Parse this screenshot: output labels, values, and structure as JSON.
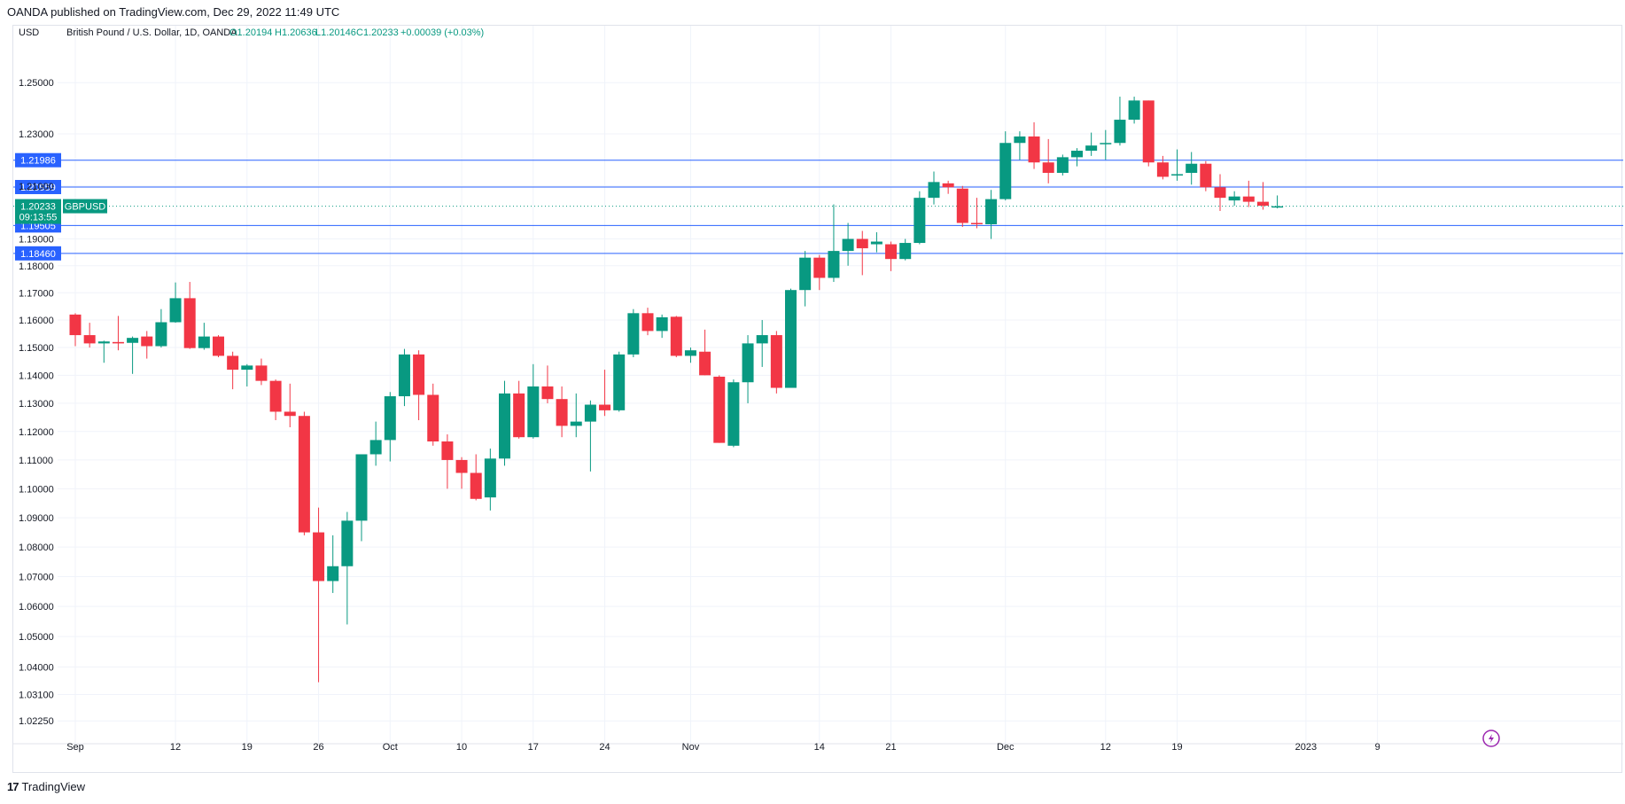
{
  "header": {
    "published_text": "OANDA published on TradingView.com, Dec 29, 2022 11:49 UTC"
  },
  "footer": {
    "brand_mark": "17",
    "brand_name": "TradingView"
  },
  "chart_data": {
    "type": "candlestick",
    "currency": "USD",
    "legend": {
      "symbol_text": "British Pound / U.S. Dollar, 1D, OANDA",
      "open": "O1.20194",
      "high": "H1.20636",
      "low": "L1.20146",
      "close": "C1.20233",
      "change": "+0.00039 (+0.03%)"
    },
    "price_axis": {
      "scale": "log",
      "range": [
        1.018,
        1.262
      ],
      "ticks": [
        "1.25000",
        "1.23000",
        "1.21000",
        "1.19000",
        "1.18000",
        "1.17000",
        "1.16000",
        "1.15000",
        "1.14000",
        "1.13000",
        "1.12000",
        "1.11000",
        "1.10000",
        "1.09000",
        "1.08000",
        "1.07000",
        "1.06000",
        "1.05000",
        "1.04000",
        "1.03100",
        "1.02250"
      ],
      "tick_values": [
        1.25,
        1.23,
        1.21,
        1.19,
        1.18,
        1.17,
        1.16,
        1.15,
        1.14,
        1.13,
        1.12,
        1.11,
        1.1,
        1.09,
        1.08,
        1.07,
        1.06,
        1.05,
        1.04,
        1.031,
        1.0225
      ]
    },
    "time_axis": {
      "labels": [
        {
          "text": "Sep",
          "index": 0
        },
        {
          "text": "12",
          "index": 7
        },
        {
          "text": "19",
          "index": 12
        },
        {
          "text": "26",
          "index": 17
        },
        {
          "text": "Oct",
          "index": 22
        },
        {
          "text": "10",
          "index": 27
        },
        {
          "text": "17",
          "index": 32
        },
        {
          "text": "24",
          "index": 37
        },
        {
          "text": "Nov",
          "index": 43
        },
        {
          "text": "14",
          "index": 52
        },
        {
          "text": "21",
          "index": 57
        },
        {
          "text": "Dec",
          "index": 65
        },
        {
          "text": "12",
          "index": 72
        },
        {
          "text": "19",
          "index": 77
        },
        {
          "text": "2023",
          "index": 86
        },
        {
          "text": "9",
          "index": 91
        }
      ]
    },
    "horizontal_lines": [
      {
        "value": 1.21986,
        "label": "1.21986"
      },
      {
        "value": 1.20959,
        "label": "1.20959"
      },
      {
        "value": 1.19505,
        "label": "1.19505"
      },
      {
        "value": 1.1846,
        "label": "1.18460"
      }
    ],
    "last_price": {
      "value": 1.20233,
      "label": "1.20233",
      "countdown": "09:13:55",
      "symbol": "GBPUSD"
    },
    "colors": {
      "up": "#089981",
      "down": "#f23645",
      "level_line": "#2962ff",
      "grid": "#f0f3fa"
    },
    "candles": [
      {
        "d": "Sep 1",
        "o": 1.162,
        "h": 1.1625,
        "l": 1.1505,
        "c": 1.1545
      },
      {
        "d": "Sep 2",
        "o": 1.1545,
        "h": 1.159,
        "l": 1.15,
        "c": 1.1515
      },
      {
        "d": "Sep 5",
        "o": 1.1515,
        "h": 1.1525,
        "l": 1.1445,
        "c": 1.1522
      },
      {
        "d": "Sep 6",
        "o": 1.152,
        "h": 1.1615,
        "l": 1.149,
        "c": 1.1515
      },
      {
        "d": "Sep 7",
        "o": 1.1517,
        "h": 1.154,
        "l": 1.1405,
        "c": 1.1535
      },
      {
        "d": "Sep 8",
        "o": 1.154,
        "h": 1.156,
        "l": 1.146,
        "c": 1.1505
      },
      {
        "d": "Sep 9",
        "o": 1.1505,
        "h": 1.164,
        "l": 1.15,
        "c": 1.1592
      },
      {
        "d": "Sep 12",
        "o": 1.1592,
        "h": 1.1738,
        "l": 1.159,
        "c": 1.168
      },
      {
        "d": "Sep 13",
        "o": 1.168,
        "h": 1.174,
        "l": 1.1495,
        "c": 1.1498
      },
      {
        "d": "Sep 14",
        "o": 1.1498,
        "h": 1.159,
        "l": 1.1492,
        "c": 1.154
      },
      {
        "d": "Sep 15",
        "o": 1.154,
        "h": 1.1545,
        "l": 1.1465,
        "c": 1.147
      },
      {
        "d": "Sep 16",
        "o": 1.147,
        "h": 1.1485,
        "l": 1.135,
        "c": 1.142
      },
      {
        "d": "Sep 19",
        "o": 1.142,
        "h": 1.144,
        "l": 1.136,
        "c": 1.1435
      },
      {
        "d": "Sep 20",
        "o": 1.1435,
        "h": 1.146,
        "l": 1.1365,
        "c": 1.138
      },
      {
        "d": "Sep 21",
        "o": 1.138,
        "h": 1.1385,
        "l": 1.124,
        "c": 1.127
      },
      {
        "d": "Sep 22",
        "o": 1.127,
        "h": 1.137,
        "l": 1.1215,
        "c": 1.1255
      },
      {
        "d": "Sep 23",
        "o": 1.1255,
        "h": 1.127,
        "l": 1.084,
        "c": 1.085
      },
      {
        "d": "Sep 26",
        "o": 1.085,
        "h": 1.0935,
        "l": 1.035,
        "c": 1.0685
      },
      {
        "d": "Sep 27",
        "o": 1.0685,
        "h": 1.084,
        "l": 1.0645,
        "c": 1.0735
      },
      {
        "d": "Sep 28",
        "o": 1.0735,
        "h": 1.092,
        "l": 1.054,
        "c": 1.089
      },
      {
        "d": "Sep 29",
        "o": 1.089,
        "h": 1.112,
        "l": 1.082,
        "c": 1.112
      },
      {
        "d": "Sep 30",
        "o": 1.112,
        "h": 1.1235,
        "l": 1.108,
        "c": 1.117
      },
      {
        "d": "Oct 3",
        "o": 1.117,
        "h": 1.134,
        "l": 1.1095,
        "c": 1.1325
      },
      {
        "d": "Oct 4",
        "o": 1.1325,
        "h": 1.1495,
        "l": 1.129,
        "c": 1.1475
      },
      {
        "d": "Oct 5",
        "o": 1.1475,
        "h": 1.149,
        "l": 1.124,
        "c": 1.133
      },
      {
        "d": "Oct 6",
        "o": 1.133,
        "h": 1.137,
        "l": 1.115,
        "c": 1.1165
      },
      {
        "d": "Oct 7",
        "o": 1.1165,
        "h": 1.119,
        "l": 1.1,
        "c": 1.11
      },
      {
        "d": "Oct 10",
        "o": 1.11,
        "h": 1.111,
        "l": 1.1,
        "c": 1.1055
      },
      {
        "d": "Oct 11",
        "o": 1.1055,
        "h": 1.112,
        "l": 1.096,
        "c": 1.0965
      },
      {
        "d": "Oct 12",
        "o": 1.097,
        "h": 1.114,
        "l": 1.0925,
        "c": 1.1105
      },
      {
        "d": "Oct 13",
        "o": 1.1105,
        "h": 1.138,
        "l": 1.108,
        "c": 1.1335
      },
      {
        "d": "Oct 14",
        "o": 1.1335,
        "h": 1.138,
        "l": 1.1175,
        "c": 1.118
      },
      {
        "d": "Oct 17",
        "o": 1.118,
        "h": 1.144,
        "l": 1.1175,
        "c": 1.136
      },
      {
        "d": "Oct 18",
        "o": 1.136,
        "h": 1.1435,
        "l": 1.13,
        "c": 1.1315
      },
      {
        "d": "Oct 19",
        "o": 1.1315,
        "h": 1.136,
        "l": 1.118,
        "c": 1.122
      },
      {
        "d": "Oct 20",
        "o": 1.122,
        "h": 1.1335,
        "l": 1.118,
        "c": 1.1235
      },
      {
        "d": "Oct 21",
        "o": 1.1235,
        "h": 1.131,
        "l": 1.106,
        "c": 1.1295
      },
      {
        "d": "Oct 24",
        "o": 1.1295,
        "h": 1.142,
        "l": 1.1255,
        "c": 1.1275
      },
      {
        "d": "Oct 25",
        "o": 1.1275,
        "h": 1.1485,
        "l": 1.127,
        "c": 1.1475
      },
      {
        "d": "Oct 26",
        "o": 1.1475,
        "h": 1.164,
        "l": 1.1465,
        "c": 1.1625
      },
      {
        "d": "Oct 27",
        "o": 1.1625,
        "h": 1.1645,
        "l": 1.1545,
        "c": 1.156
      },
      {
        "d": "Oct 28",
        "o": 1.156,
        "h": 1.162,
        "l": 1.1535,
        "c": 1.161
      },
      {
        "d": "Oct 31",
        "o": 1.1612,
        "h": 1.1615,
        "l": 1.1465,
        "c": 1.147
      },
      {
        "d": "Nov 1",
        "o": 1.147,
        "h": 1.15,
        "l": 1.1445,
        "c": 1.149
      },
      {
        "d": "Nov 2",
        "o": 1.1485,
        "h": 1.1565,
        "l": 1.14,
        "c": 1.14
      },
      {
        "d": "Nov 3",
        "o": 1.1395,
        "h": 1.14,
        "l": 1.116,
        "c": 1.116
      },
      {
        "d": "Nov 4",
        "o": 1.115,
        "h": 1.1385,
        "l": 1.1145,
        "c": 1.1375
      },
      {
        "d": "Nov 7",
        "o": 1.1375,
        "h": 1.1545,
        "l": 1.13,
        "c": 1.1515
      },
      {
        "d": "Nov 8",
        "o": 1.1515,
        "h": 1.16,
        "l": 1.143,
        "c": 1.1545
      },
      {
        "d": "Nov 9",
        "o": 1.1545,
        "h": 1.156,
        "l": 1.1335,
        "c": 1.1355
      },
      {
        "d": "Nov 10",
        "o": 1.1355,
        "h": 1.1715,
        "l": 1.1355,
        "c": 1.171
      },
      {
        "d": "Nov 11",
        "o": 1.171,
        "h": 1.1855,
        "l": 1.165,
        "c": 1.183
      },
      {
        "d": "Nov 14",
        "o": 1.183,
        "h": 1.184,
        "l": 1.171,
        "c": 1.1755
      },
      {
        "d": "Nov 15",
        "o": 1.1755,
        "h": 1.203,
        "l": 1.174,
        "c": 1.1855
      },
      {
        "d": "Nov 16",
        "o": 1.1855,
        "h": 1.196,
        "l": 1.18,
        "c": 1.19
      },
      {
        "d": "Nov 17",
        "o": 1.19,
        "h": 1.193,
        "l": 1.1765,
        "c": 1.1865
      },
      {
        "d": "Nov 18",
        "o": 1.188,
        "h": 1.1925,
        "l": 1.185,
        "c": 1.189
      },
      {
        "d": "Nov 21",
        "o": 1.188,
        "h": 1.189,
        "l": 1.178,
        "c": 1.1825
      },
      {
        "d": "Nov 22",
        "o": 1.1825,
        "h": 1.19,
        "l": 1.182,
        "c": 1.1885
      },
      {
        "d": "Nov 23",
        "o": 1.1885,
        "h": 1.208,
        "l": 1.188,
        "c": 1.2055
      },
      {
        "d": "Nov 24",
        "o": 1.2055,
        "h": 1.2155,
        "l": 1.203,
        "c": 1.2115
      },
      {
        "d": "Nov 25",
        "o": 1.211,
        "h": 1.212,
        "l": 1.207,
        "c": 1.2095
      },
      {
        "d": "Nov 28",
        "o": 1.209,
        "h": 1.21,
        "l": 1.1945,
        "c": 1.196
      },
      {
        "d": "Nov 29",
        "o": 1.196,
        "h": 1.2055,
        "l": 1.194,
        "c": 1.1955
      },
      {
        "d": "Nov 30",
        "o": 1.1955,
        "h": 1.2085,
        "l": 1.19,
        "c": 1.205
      },
      {
        "d": "Dec 1",
        "o": 1.205,
        "h": 1.231,
        "l": 1.2045,
        "c": 1.2265
      },
      {
        "d": "Dec 2",
        "o": 1.2265,
        "h": 1.231,
        "l": 1.22,
        "c": 1.229
      },
      {
        "d": "Dec 5",
        "o": 1.229,
        "h": 1.2345,
        "l": 1.2165,
        "c": 1.219
      },
      {
        "d": "Dec 6",
        "o": 1.219,
        "h": 1.228,
        "l": 1.211,
        "c": 1.215
      },
      {
        "d": "Dec 7",
        "o": 1.215,
        "h": 1.222,
        "l": 1.214,
        "c": 1.221
      },
      {
        "d": "Dec 8",
        "o": 1.221,
        "h": 1.2245,
        "l": 1.2175,
        "c": 1.2235
      },
      {
        "d": "Dec 9",
        "o": 1.2235,
        "h": 1.2305,
        "l": 1.2215,
        "c": 1.2255
      },
      {
        "d": "Dec 12",
        "o": 1.2265,
        "h": 1.2315,
        "l": 1.22,
        "c": 1.2265
      },
      {
        "d": "Dec 13",
        "o": 1.2265,
        "h": 1.2445,
        "l": 1.2255,
        "c": 1.2355
      },
      {
        "d": "Dec 14",
        "o": 1.2355,
        "h": 1.2445,
        "l": 1.234,
        "c": 1.243
      },
      {
        "d": "Dec 15",
        "o": 1.243,
        "h": 1.243,
        "l": 1.2175,
        "c": 1.219
      },
      {
        "d": "Dec 16",
        "o": 1.219,
        "h": 1.2215,
        "l": 1.2125,
        "c": 1.2135
      },
      {
        "d": "Dec 19",
        "o": 1.214,
        "h": 1.224,
        "l": 1.212,
        "c": 1.2145
      },
      {
        "d": "Dec 20",
        "o": 1.215,
        "h": 1.223,
        "l": 1.2105,
        "c": 1.2185
      },
      {
        "d": "Dec 21",
        "o": 1.2185,
        "h": 1.2195,
        "l": 1.208,
        "c": 1.2095
      },
      {
        "d": "Dec 22",
        "o": 1.2095,
        "h": 1.2145,
        "l": 1.2005,
        "c": 1.2055
      },
      {
        "d": "Dec 23",
        "o": 1.2045,
        "h": 1.208,
        "l": 1.2025,
        "c": 1.206
      },
      {
        "d": "Dec 27",
        "o": 1.206,
        "h": 1.212,
        "l": 1.202,
        "c": 1.204
      },
      {
        "d": "Dec 28",
        "o": 1.204,
        "h": 1.2115,
        "l": 1.201,
        "c": 1.2025
      },
      {
        "d": "Dec 29",
        "o": 1.2019,
        "h": 1.2064,
        "l": 1.2015,
        "c": 1.2023
      }
    ]
  }
}
